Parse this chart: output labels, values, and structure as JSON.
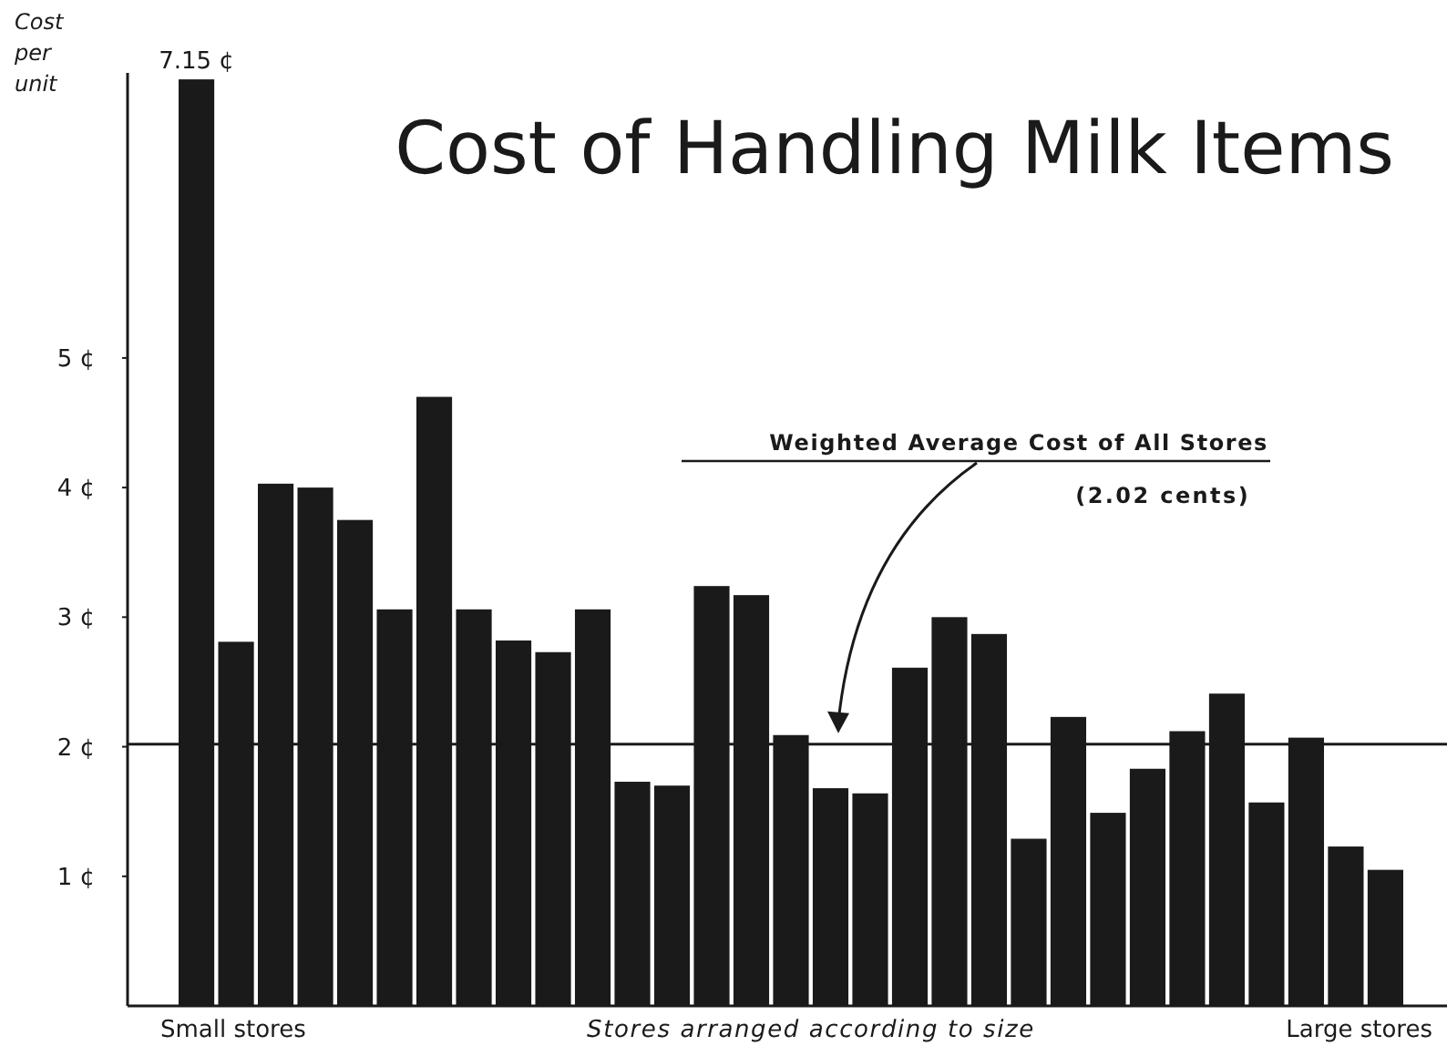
{
  "chart_data": {
    "type": "bar",
    "title": "Cost of Handling Milk Items",
    "ylabel": "Cost per unit",
    "xlabel": "Stores arranged according to size",
    "categories": [
      null,
      null,
      null,
      null,
      null,
      null,
      null,
      null,
      null,
      null,
      null,
      null,
      null,
      null,
      null,
      null,
      null,
      null,
      null,
      null,
      null,
      null,
      null,
      null,
      null,
      null,
      null,
      null,
      null,
      null,
      null
    ],
    "values": [
      7.15,
      2.81,
      4.03,
      4.0,
      3.75,
      3.06,
      4.7,
      3.06,
      2.82,
      2.73,
      3.06,
      1.73,
      1.7,
      3.24,
      3.17,
      2.09,
      1.68,
      1.64,
      2.61,
      3.0,
      2.87,
      1.29,
      2.23,
      1.49,
      1.83,
      2.12,
      2.41,
      1.57,
      2.07,
      1.23,
      1.05
    ],
    "value_labels": [
      "7.15 ¢",
      null,
      null,
      null,
      null,
      null,
      null,
      null,
      null,
      null,
      null,
      null,
      null,
      null,
      null,
      null,
      null,
      null,
      null,
      null,
      null,
      null,
      null,
      null,
      null,
      null,
      null,
      null,
      null,
      null,
      null
    ],
    "color": "#1a1a1a",
    "ylim": [
      0,
      7.2
    ],
    "yticks": [
      {
        "value": 1,
        "label": "1 ¢"
      },
      {
        "value": 2,
        "label": "2 ¢"
      },
      {
        "value": 3,
        "label": "3 ¢"
      },
      {
        "value": 4,
        "label": "4 ¢"
      },
      {
        "value": 5,
        "label": "5 ¢"
      }
    ],
    "grid": false,
    "ref_lines": [
      {
        "axis": "y",
        "value": 2.02,
        "label": "Weighted Average Cost of All Stores",
        "color": "#1a1a1a"
      }
    ],
    "annotations": [
      "(2.02 cents)",
      "Small stores",
      "Large stores"
    ]
  }
}
